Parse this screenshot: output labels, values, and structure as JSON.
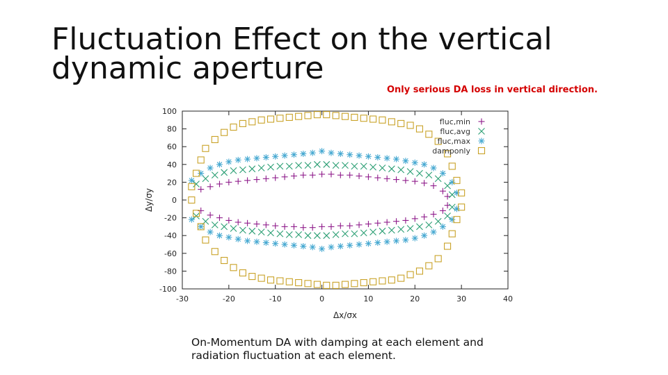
{
  "slide": {
    "title": "Fluctuation Effect on the vertical\ndynamic aperture",
    "note": "Only serious DA loss in vertical direction.",
    "caption": "On-Momentum DA with damping at each element and radiation fluctuation at each element."
  },
  "chart_data": {
    "type": "scatter",
    "xlabel": "Δx/σx",
    "ylabel": "Δy/σy",
    "xlim": [
      -30,
      40
    ],
    "ylim": [
      -100,
      100
    ],
    "xticks": [
      -30,
      -20,
      -10,
      0,
      10,
      20,
      30,
      40
    ],
    "yticks": [
      -100,
      -80,
      -60,
      -40,
      -20,
      0,
      20,
      40,
      60,
      80,
      100
    ],
    "grid": false,
    "legend_position": "top-right",
    "series": [
      {
        "name": "fluc,min",
        "marker": "plus",
        "color": "#8e1a8a",
        "x": [
          -26,
          -24,
          -22,
          -20,
          -18,
          -16,
          -14,
          -12,
          -10,
          -8,
          -6,
          -4,
          -2,
          0,
          2,
          4,
          6,
          8,
          10,
          12,
          14,
          16,
          18,
          20,
          22,
          24,
          26,
          27,
          27,
          26,
          24,
          22,
          20,
          18,
          16,
          14,
          12,
          10,
          8,
          6,
          4,
          2,
          0,
          -2,
          -4,
          -6,
          -8,
          -10,
          -12,
          -14,
          -16,
          -18,
          -20,
          -22,
          -24,
          -26
        ],
        "y": [
          12,
          15,
          18,
          20,
          21,
          22,
          23,
          24,
          25,
          26,
          27,
          28,
          28,
          29,
          29,
          28,
          28,
          27,
          26,
          25,
          24,
          23,
          22,
          21,
          19,
          16,
          10,
          4,
          -6,
          -12,
          -16,
          -19,
          -21,
          -23,
          -24,
          -25,
          -26,
          -27,
          -28,
          -29,
          -29,
          -30,
          -30,
          -31,
          -31,
          -30,
          -30,
          -29,
          -28,
          -27,
          -26,
          -25,
          -23,
          -20,
          -17,
          -12
        ]
      },
      {
        "name": "fluc,avg",
        "marker": "cross",
        "color": "#2a9e73",
        "x": [
          -27,
          -25,
          -23,
          -21,
          -19,
          -17,
          -15,
          -13,
          -11,
          -9,
          -7,
          -5,
          -3,
          -1,
          1,
          3,
          5,
          7,
          9,
          11,
          13,
          15,
          17,
          19,
          21,
          23,
          25,
          27,
          28,
          28,
          27,
          25,
          23,
          21,
          19,
          17,
          15,
          13,
          11,
          9,
          7,
          5,
          3,
          1,
          -1,
          -3,
          -5,
          -7,
          -9,
          -11,
          -13,
          -15,
          -17,
          -19,
          -21,
          -23,
          -25,
          -27
        ],
        "y": [
          18,
          24,
          28,
          31,
          33,
          34,
          35,
          36,
          37,
          38,
          38,
          39,
          39,
          40,
          40,
          39,
          39,
          38,
          38,
          37,
          36,
          35,
          34,
          32,
          30,
          28,
          24,
          16,
          6,
          -8,
          -18,
          -24,
          -28,
          -30,
          -32,
          -33,
          -34,
          -35,
          -36,
          -37,
          -38,
          -38,
          -39,
          -40,
          -40,
          -40,
          -39,
          -39,
          -38,
          -37,
          -36,
          -35,
          -34,
          -32,
          -30,
          -28,
          -24,
          -18
        ]
      },
      {
        "name": "fluc,max",
        "marker": "star",
        "color": "#45a8d1",
        "x": [
          -28,
          -26,
          -24,
          -22,
          -20,
          -18,
          -16,
          -14,
          -12,
          -10,
          -8,
          -6,
          -4,
          -2,
          0,
          2,
          4,
          6,
          8,
          10,
          12,
          14,
          16,
          18,
          20,
          22,
          24,
          26,
          28,
          29,
          29,
          28,
          26,
          24,
          22,
          20,
          18,
          16,
          14,
          12,
          10,
          8,
          6,
          4,
          2,
          0,
          -2,
          -4,
          -6,
          -8,
          -10,
          -12,
          -14,
          -16,
          -18,
          -20,
          -22,
          -24,
          -26,
          -28
        ],
        "y": [
          22,
          30,
          36,
          40,
          43,
          45,
          46,
          47,
          48,
          49,
          50,
          51,
          52,
          53,
          55,
          53,
          52,
          51,
          50,
          49,
          48,
          47,
          46,
          44,
          42,
          40,
          36,
          30,
          20,
          8,
          -10,
          -22,
          -30,
          -36,
          -40,
          -43,
          -45,
          -46,
          -47,
          -48,
          -49,
          -50,
          -51,
          -52,
          -53,
          -55,
          -53,
          -52,
          -51,
          -50,
          -49,
          -48,
          -47,
          -46,
          -44,
          -42,
          -40,
          -36,
          -30,
          -22
        ]
      },
      {
        "name": "damponly",
        "marker": "square",
        "color": "#c9a227",
        "x": [
          -27,
          -26,
          -25,
          -23,
          -21,
          -19,
          -17,
          -15,
          -13,
          -11,
          -9,
          -7,
          -5,
          -3,
          -1,
          1,
          3,
          5,
          7,
          9,
          11,
          13,
          15,
          17,
          19,
          21,
          23,
          25,
          27,
          28,
          29,
          30,
          30,
          29,
          28,
          27,
          25,
          23,
          21,
          19,
          17,
          15,
          13,
          11,
          9,
          7,
          5,
          3,
          1,
          -1,
          -3,
          -5,
          -7,
          -9,
          -11,
          -13,
          -15,
          -17,
          -19,
          -21,
          -23,
          -25,
          -26,
          -27,
          -28,
          -28
        ],
        "y": [
          30,
          45,
          58,
          68,
          76,
          82,
          86,
          88,
          90,
          91,
          92,
          93,
          94,
          95,
          96,
          96,
          95,
          94,
          93,
          92,
          91,
          90,
          88,
          86,
          84,
          80,
          74,
          66,
          52,
          38,
          22,
          8,
          -8,
          -22,
          -38,
          -52,
          -66,
          -74,
          -80,
          -84,
          -88,
          -90,
          -91,
          -92,
          -93,
          -94,
          -95,
          -96,
          -96,
          -95,
          -94,
          -93,
          -92,
          -91,
          -90,
          -88,
          -86,
          -82,
          -76,
          -68,
          -58,
          -45,
          -30,
          -15,
          0,
          15
        ]
      }
    ]
  }
}
